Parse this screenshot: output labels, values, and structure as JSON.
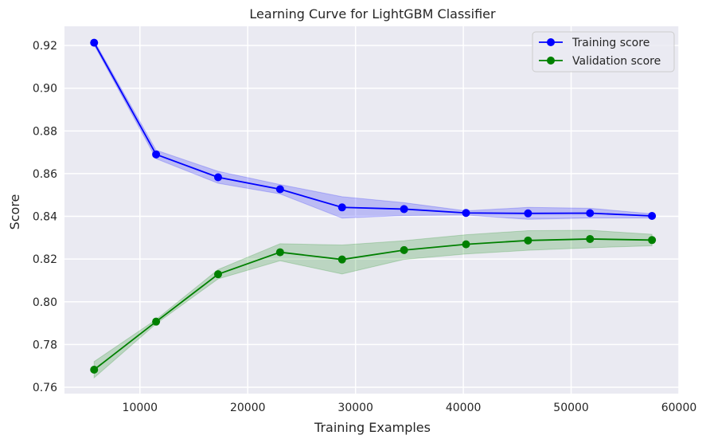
{
  "chart_data": {
    "type": "line",
    "title": "Learning Curve for LightGBM Classifier",
    "xlabel": "Training Examples",
    "ylabel": "Score",
    "xlim": [
      3000,
      60000
    ],
    "ylim": [
      0.757,
      0.929
    ],
    "x_ticks": [
      10000,
      20000,
      30000,
      40000,
      50000,
      60000
    ],
    "x_tick_labels": [
      "10000",
      "20000",
      "30000",
      "40000",
      "50000",
      "60000"
    ],
    "y_ticks": [
      0.76,
      0.78,
      0.8,
      0.82,
      0.84,
      0.86,
      0.88,
      0.9,
      0.92
    ],
    "y_tick_labels": [
      "0.76",
      "0.78",
      "0.80",
      "0.82",
      "0.84",
      "0.86",
      "0.88",
      "0.90",
      "0.92"
    ],
    "grid": true,
    "legend_position": "top-right",
    "background_color": "#eaeaf2",
    "x": [
      5750,
      11500,
      17250,
      23000,
      28750,
      34500,
      40250,
      46000,
      51750,
      57500
    ],
    "series": [
      {
        "name": "Training score",
        "color": "#0000ff",
        "marker": "circle",
        "values": [
          0.9213,
          0.869,
          0.8583,
          0.8527,
          0.8442,
          0.8434,
          0.8416,
          0.8414,
          0.8415,
          0.8402
        ],
        "band_lower": [
          0.9203,
          0.867,
          0.8555,
          0.8505,
          0.8392,
          0.8404,
          0.8406,
          0.8386,
          0.8392,
          0.8392
        ],
        "band_upper": [
          0.9223,
          0.871,
          0.8611,
          0.8549,
          0.8492,
          0.8464,
          0.8426,
          0.8442,
          0.8438,
          0.8412
        ],
        "band_color": "#0000ff"
      },
      {
        "name": "Validation score",
        "color": "#008000",
        "marker": "circle",
        "values": [
          0.7682,
          0.7907,
          0.8129,
          0.8232,
          0.8198,
          0.8242,
          0.8269,
          0.8287,
          0.8294,
          0.8289
        ],
        "band_lower": [
          0.7644,
          0.7897,
          0.8107,
          0.8192,
          0.813,
          0.8198,
          0.8224,
          0.8241,
          0.8253,
          0.8262
        ],
        "band_upper": [
          0.772,
          0.7917,
          0.8151,
          0.8272,
          0.8266,
          0.8286,
          0.8314,
          0.8333,
          0.8335,
          0.8316
        ],
        "band_color": "#008000"
      }
    ]
  }
}
